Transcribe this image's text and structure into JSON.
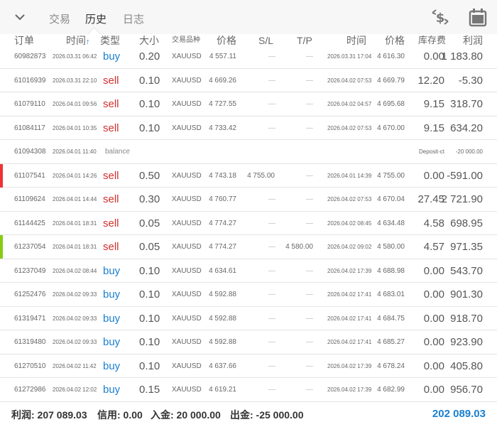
{
  "header": {
    "tabs": [
      {
        "label": "交易"
      },
      {
        "label": "历史",
        "active": true
      },
      {
        "label": "日志"
      }
    ],
    "icons": [
      "chevron-down-icon",
      "currency-exchange-icon",
      "calendar-icon"
    ]
  },
  "columns": {
    "order": "订单",
    "open_time": "时间",
    "sort_arrow": "↑",
    "type": "类型",
    "size": "大小",
    "symbol": "交易品种",
    "open_price": "价格",
    "sl": "S/L",
    "tp": "T/P",
    "close_time": "时间",
    "close_price": "价格",
    "swap": "库存费",
    "profit": "利润"
  },
  "rows": [
    {
      "order": "60982873",
      "open_time": "2026.03.31 06:42",
      "type": "buy",
      "size": "0.20",
      "symbol": "XAUUSD",
      "open_price": "4 557.11",
      "sl": "—",
      "tp": "—",
      "close_time": "2026.03.31 17:04",
      "close_price": "4 616.30",
      "swap": "0.00",
      "profit": "1 183.80"
    },
    {
      "order": "61016939",
      "open_time": "2026.03.31 22:10",
      "type": "sell",
      "size": "0.10",
      "symbol": "XAUUSD",
      "open_price": "4 669.26",
      "sl": "—",
      "tp": "—",
      "close_time": "2026.04.02 07:53",
      "close_price": "4 669.79",
      "swap": "12.20",
      "profit": "-5.30"
    },
    {
      "order": "61079110",
      "open_time": "2026.04.01 09:56",
      "type": "sell",
      "size": "0.10",
      "symbol": "XAUUSD",
      "open_price": "4 727.55",
      "sl": "—",
      "tp": "—",
      "close_time": "2026.04.02 04:57",
      "close_price": "4 695.68",
      "swap": "9.15",
      "profit": "318.70"
    },
    {
      "order": "61084117",
      "open_time": "2026.04.01 10:35",
      "type": "sell",
      "size": "0.10",
      "symbol": "XAUUSD",
      "open_price": "4 733.42",
      "sl": "—",
      "tp": "—",
      "close_time": "2026.04.02 07:53",
      "close_price": "4 670.00",
      "swap": "9.15",
      "profit": "634.20"
    },
    {
      "order": "61094308",
      "open_time": "2026.04.01 11:40",
      "type": "balance",
      "comment": "Deposit-ct",
      "profit": "-20 000.00"
    },
    {
      "order": "61107541",
      "open_time": "2026.04.01 14:26",
      "type": "sell",
      "size": "0.50",
      "symbol": "XAUUSD",
      "open_price": "4 743.18",
      "sl": "4 755.00",
      "tp": "—",
      "close_time": "2026.04.01 14:39",
      "close_price": "4 755.00",
      "swap": "0.00",
      "profit": "-591.00",
      "marker": "#ee3333"
    },
    {
      "order": "61109624",
      "open_time": "2026.04.01 14:44",
      "type": "sell",
      "size": "0.30",
      "symbol": "XAUUSD",
      "open_price": "4 760.77",
      "sl": "—",
      "tp": "—",
      "close_time": "2026.04.02 07:53",
      "close_price": "4 670.04",
      "swap": "27.45",
      "profit": "2 721.90"
    },
    {
      "order": "61144425",
      "open_time": "2026.04.01 18:31",
      "type": "sell",
      "size": "0.05",
      "symbol": "XAUUSD",
      "open_price": "4 774.27",
      "sl": "—",
      "tp": "—",
      "close_time": "2026.04.02 08:45",
      "close_price": "4 634.48",
      "swap": "4.58",
      "profit": "698.95"
    },
    {
      "order": "61237054",
      "open_time": "2026.04.01 18:31",
      "type": "sell",
      "size": "0.05",
      "symbol": "XAUUSD",
      "open_price": "4 774.27",
      "sl": "—",
      "tp": "4 580.00",
      "close_time": "2026.04.02 09:02",
      "close_price": "4 580.00",
      "swap": "4.57",
      "profit": "971.35",
      "marker": "#88cc11"
    },
    {
      "order": "61237049",
      "open_time": "2026.04.02 08:44",
      "type": "buy",
      "size": "0.10",
      "symbol": "XAUUSD",
      "open_price": "4 634.61",
      "sl": "—",
      "tp": "—",
      "close_time": "2026.04.02 17:39",
      "close_price": "4 688.98",
      "swap": "0.00",
      "profit": "543.70"
    },
    {
      "order": "61252476",
      "open_time": "2026.04.02 09:33",
      "type": "buy",
      "size": "0.10",
      "symbol": "XAUUSD",
      "open_price": "4 592.88",
      "sl": "—",
      "tp": "—",
      "close_time": "2026.04.02 17:41",
      "close_price": "4 683.01",
      "swap": "0.00",
      "profit": "901.30"
    },
    {
      "order": "61319471",
      "open_time": "2026.04.02 09:33",
      "type": "buy",
      "size": "0.10",
      "symbol": "XAUUSD",
      "open_price": "4 592.88",
      "sl": "—",
      "tp": "—",
      "close_time": "2026.04.02 17:41",
      "close_price": "4 684.75",
      "swap": "0.00",
      "profit": "918.70"
    },
    {
      "order": "61319480",
      "open_time": "2026.04.02 09:33",
      "type": "buy",
      "size": "0.10",
      "symbol": "XAUUSD",
      "open_price": "4 592.88",
      "sl": "—",
      "tp": "—",
      "close_time": "2026.04.02 17:41",
      "close_price": "4 685.27",
      "swap": "0.00",
      "profit": "923.90"
    },
    {
      "order": "61270510",
      "open_time": "2026.04.02 11:42",
      "type": "buy",
      "size": "0.10",
      "symbol": "XAUUSD",
      "open_price": "4 637.66",
      "sl": "—",
      "tp": "—",
      "close_time": "2026.04.02 17:39",
      "close_price": "4 678.24",
      "swap": "0.00",
      "profit": "405.80"
    },
    {
      "order": "61272986",
      "open_time": "2026.04.02 12:02",
      "type": "buy",
      "size": "0.15",
      "symbol": "XAUUSD",
      "open_price": "4 619.21",
      "sl": "—",
      "tp": "—",
      "close_time": "2026.04.02 17:39",
      "close_price": "4 682.99",
      "swap": "0.00",
      "profit": "956.70"
    }
  ],
  "footer": {
    "profit": "利润: 207 089.03",
    "credit": "信用: 0.00",
    "deposit": "入金: 20 000.00",
    "withdrawal": "出金: -25 000.00",
    "balance": "202 089.03"
  },
  "colors": {
    "buy": "#1a7fd0",
    "sell": "#d0302f",
    "total": "#1a7fd0"
  }
}
